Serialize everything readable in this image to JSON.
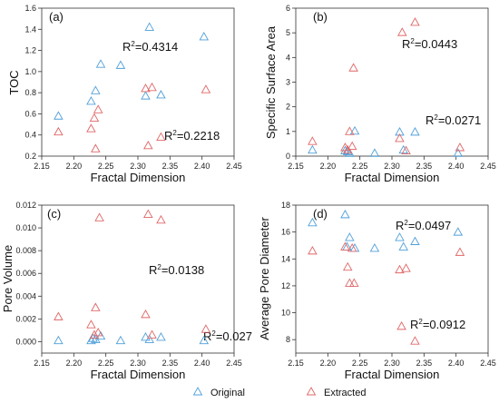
{
  "colors": {
    "original": "#4F9FD8",
    "extracted": "#E06666",
    "axis": "#333333"
  },
  "legend": {
    "items": [
      {
        "key": "original",
        "label": "Original",
        "symbol": "triangle-open"
      },
      {
        "key": "extracted",
        "label": "Extracted",
        "symbol": "triangle-open"
      }
    ],
    "placement": "bottom"
  },
  "chart_data": [
    {
      "id": "a",
      "type": "scatter",
      "panel_label": "(a)",
      "xlabel": "Fractal Dimension",
      "ylabel": "TOC",
      "xlim": [
        2.15,
        2.45
      ],
      "ylim": [
        0.2,
        1.6
      ],
      "xticks": [
        "2.15",
        "2.20",
        "2.25",
        "2.30",
        "2.35",
        "2.40",
        "2.45"
      ],
      "yticks": [
        "0.2",
        "0.4",
        "0.6",
        "0.8",
        "1.0",
        "1.2",
        "1.4",
        "1.6"
      ],
      "grid": false,
      "series": [
        {
          "key": "original",
          "name": "Original",
          "x": [
            2.176,
            2.227,
            2.234,
            2.242,
            2.273,
            2.312,
            2.318,
            2.336,
            2.403
          ],
          "y": [
            0.58,
            0.72,
            0.82,
            1.07,
            1.06,
            0.77,
            1.42,
            0.78,
            1.33
          ]
        },
        {
          "key": "extracted",
          "name": "Extracted",
          "x": [
            2.176,
            2.227,
            2.232,
            2.234,
            2.238,
            2.312,
            2.316,
            2.322,
            2.336,
            2.406
          ],
          "y": [
            0.43,
            0.46,
            0.56,
            0.27,
            0.64,
            0.84,
            0.3,
            0.85,
            0.38,
            0.83
          ]
        }
      ],
      "annotations": [
        {
          "base": "R",
          "exp": "2",
          "rest": "=0.4314"
        },
        {
          "base": "R",
          "exp": "2",
          "rest": "=0.2218"
        }
      ]
    },
    {
      "id": "b",
      "type": "scatter",
      "panel_label": "(b)",
      "xlabel": "Fractal Dimension",
      "ylabel": "Specific Surface Area",
      "xlim": [
        2.15,
        2.45
      ],
      "ylim": [
        0,
        6
      ],
      "xticks": [
        "2.15",
        "2.20",
        "2.25",
        "2.30",
        "2.35",
        "2.40",
        "2.45"
      ],
      "yticks": [
        "0",
        "1",
        "2",
        "3",
        "4",
        "5",
        "6"
      ],
      "grid": false,
      "series": [
        {
          "key": "original",
          "name": "Original",
          "x": [
            2.176,
            2.227,
            2.231,
            2.234,
            2.242,
            2.273,
            2.312,
            2.318,
            2.336,
            2.403
          ],
          "y": [
            0.25,
            0.22,
            0.18,
            0.12,
            1.02,
            0.12,
            0.98,
            0.25,
            0.98,
            0.12
          ]
        },
        {
          "key": "extracted",
          "name": "Extracted",
          "x": [
            2.176,
            2.227,
            2.231,
            2.234,
            2.238,
            2.24,
            2.312,
            2.316,
            2.322,
            2.336,
            2.406
          ],
          "y": [
            0.6,
            0.35,
            0.25,
            1.0,
            0.4,
            3.58,
            0.72,
            5.02,
            0.22,
            5.43,
            0.35
          ]
        }
      ],
      "annotations": [
        {
          "base": "R",
          "exp": "2",
          "rest": "=0.0443"
        },
        {
          "base": "R",
          "exp": "2",
          "rest": "=0.0271"
        }
      ]
    },
    {
      "id": "c",
      "type": "scatter",
      "panel_label": "(c)",
      "xlabel": "Fractal Dimension",
      "ylabel": "Pore Volume",
      "xlim": [
        2.15,
        2.45
      ],
      "ylim": [
        -0.001,
        0.012
      ],
      "xticks": [
        "2.15",
        "2.20",
        "2.25",
        "2.30",
        "2.35",
        "2.40",
        "2.45"
      ],
      "yticks": [
        "0.000",
        "0.002",
        "0.004",
        "0.006",
        "0.008",
        "0.010",
        "0.012"
      ],
      "grid": false,
      "series": [
        {
          "key": "original",
          "name": "Original",
          "x": [
            2.176,
            2.227,
            2.23,
            2.234,
            2.242,
            2.273,
            2.312,
            2.318,
            2.336,
            2.403
          ],
          "y": [
            0.0001,
            0.0001,
            0.0003,
            0.0002,
            0.0005,
            0.0001,
            0.0004,
            0.0002,
            0.0004,
            0.0001
          ]
        },
        {
          "key": "extracted",
          "name": "Extracted",
          "x": [
            2.176,
            2.227,
            2.232,
            2.234,
            2.238,
            2.24,
            2.312,
            2.316,
            2.322,
            2.336,
            2.406
          ],
          "y": [
            0.0022,
            0.0015,
            0.0006,
            0.003,
            0.0008,
            0.0109,
            0.0024,
            0.0112,
            0.0006,
            0.0107,
            0.0011
          ]
        }
      ],
      "annotations": [
        {
          "base": "R",
          "exp": "2",
          "rest": "=0.0138"
        },
        {
          "base": "R",
          "exp": "2",
          "rest": "=0.027"
        }
      ]
    },
    {
      "id": "d",
      "type": "scatter",
      "panel_label": "(d)",
      "xlabel": "Fractal Dimension",
      "ylabel": "Average Pore Diameter",
      "xlim": [
        2.15,
        2.45
      ],
      "ylim": [
        7,
        18
      ],
      "xticks": [
        "2.15",
        "2.20",
        "2.25",
        "2.30",
        "2.35",
        "2.40",
        "2.45"
      ],
      "yticks": [
        "8",
        "10",
        "12",
        "14",
        "16",
        "18"
      ],
      "grid": false,
      "series": [
        {
          "key": "original",
          "name": "Original",
          "x": [
            2.176,
            2.227,
            2.23,
            2.234,
            2.242,
            2.273,
            2.312,
            2.318,
            2.336,
            2.403
          ],
          "y": [
            16.7,
            17.3,
            14.9,
            15.6,
            14.8,
            14.8,
            15.6,
            14.9,
            15.3,
            16.0
          ]
        },
        {
          "key": "extracted",
          "name": "Extracted",
          "x": [
            2.176,
            2.227,
            2.231,
            2.234,
            2.238,
            2.241,
            2.312,
            2.315,
            2.322,
            2.336,
            2.406
          ],
          "y": [
            14.6,
            14.9,
            13.4,
            12.2,
            14.8,
            12.2,
            13.2,
            9.0,
            13.3,
            7.9,
            14.5
          ]
        }
      ],
      "annotations": [
        {
          "base": "R",
          "exp": "2",
          "rest": "=0.0497"
        },
        {
          "base": "R",
          "exp": "2",
          "rest": "=0.0912"
        }
      ]
    }
  ]
}
